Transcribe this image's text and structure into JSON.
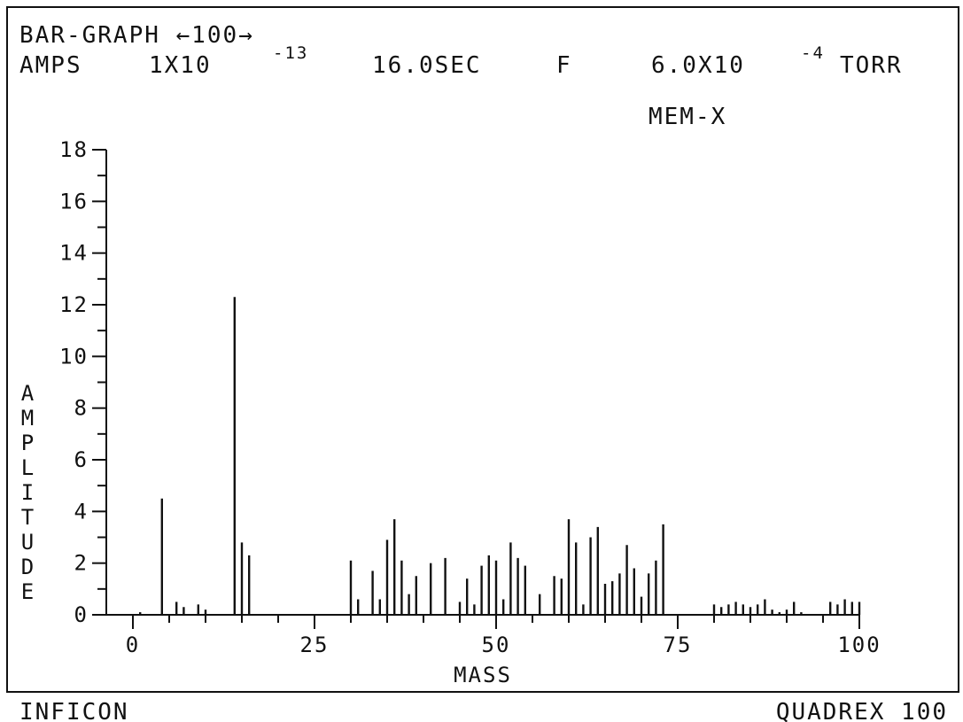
{
  "header": {
    "line1": "BAR-GRAPH ←100→",
    "amps_label": "AMPS",
    "amps_mantissa": "1X10",
    "amps_exponent": "-13",
    "time": "16.0SEC",
    "mode": "F",
    "pressure_mantissa": "6.0X10",
    "pressure_exponent": "-4",
    "pressure_unit": "TORR",
    "sample": "MEM-X"
  },
  "footer": {
    "left": "INFICON",
    "right": "QUADREX 100"
  },
  "chart_data": {
    "type": "bar",
    "title": "BAR-GRAPH ←100→",
    "xlabel": "MASS",
    "ylabel": "AMPLITUDE",
    "xlim": [
      0,
      100
    ],
    "ylim": [
      0,
      18
    ],
    "x_ticks": [
      "0",
      "25",
      "50",
      "75",
      "100"
    ],
    "y_ticks": [
      "0",
      "2",
      "4",
      "6",
      "8",
      "10",
      "12",
      "14",
      "16",
      "18"
    ],
    "grid": false,
    "x": [
      1,
      4,
      6,
      7,
      9,
      10,
      14,
      15,
      16,
      30,
      31,
      33,
      34,
      35,
      36,
      37,
      38,
      39,
      41,
      43,
      45,
      46,
      47,
      48,
      49,
      50,
      51,
      52,
      53,
      54,
      56,
      58,
      59,
      60,
      61,
      62,
      63,
      64,
      65,
      66,
      67,
      68,
      69,
      70,
      71,
      72,
      73,
      80,
      81,
      82,
      83,
      84,
      85,
      86,
      87,
      88,
      89,
      90,
      91,
      92,
      96,
      97,
      98,
      99,
      100
    ],
    "values": [
      0.1,
      4.5,
      0.5,
      0.3,
      0.4,
      0.2,
      12.3,
      2.8,
      2.3,
      2.1,
      0.6,
      1.7,
      0.6,
      2.9,
      3.7,
      2.1,
      0.8,
      1.5,
      2.0,
      2.2,
      0.5,
      1.4,
      0.4,
      1.9,
      2.3,
      2.1,
      0.6,
      2.8,
      2.2,
      1.9,
      0.8,
      1.5,
      1.4,
      3.7,
      2.8,
      0.4,
      3.0,
      3.4,
      1.2,
      1.3,
      1.6,
      2.7,
      1.8,
      0.7,
      1.6,
      2.1,
      3.5,
      0.4,
      0.3,
      0.4,
      0.5,
      0.4,
      0.3,
      0.4,
      0.6,
      0.2,
      0.1,
      0.2,
      0.5,
      0.1,
      0.5,
      0.4,
      0.6,
      0.5,
      0.5
    ]
  }
}
